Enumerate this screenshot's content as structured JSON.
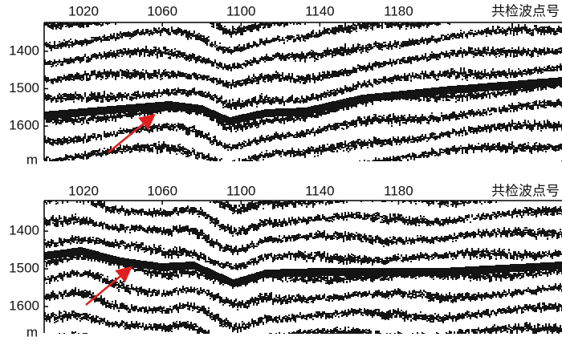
{
  "panels": [
    {
      "x_label": "共检波点号",
      "y_unit": "m",
      "xlim": [
        1000,
        1263
      ],
      "xticks": [
        1020,
        1060,
        1100,
        1140,
        1180
      ],
      "ylim": [
        1323,
        1692
      ],
      "yticks": [
        1400,
        1500,
        1600
      ]
    },
    {
      "x_label": "共检波点号",
      "y_unit": "m",
      "xlim": [
        1000,
        1263
      ],
      "xticks": [
        1020,
        1060,
        1100,
        1140,
        1180
      ],
      "ylim": [
        1319,
        1670
      ],
      "yticks": [
        1400,
        1500,
        1600
      ]
    }
  ]
}
